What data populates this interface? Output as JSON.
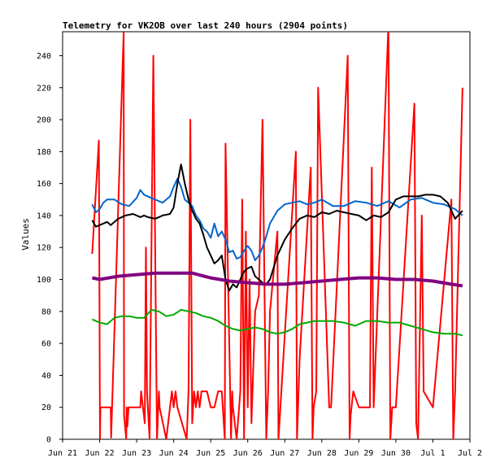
{
  "chart_data": {
    "type": "line",
    "title": "Telemetry for VK2OB over last 240 hours (2904 points)",
    "xlabel": "",
    "ylabel": "Values",
    "xlim": [
      "Jun 21",
      "Jul 2"
    ],
    "ylim": [
      0,
      255
    ],
    "x_ticks": [
      "Jun 21",
      "Jun 22",
      "Jun 23",
      "Jun 24",
      "Jun 25",
      "Jun 26",
      "Jun 27",
      "Jun 28",
      "Jun 29",
      "Jun 30",
      "Jul 1",
      "Jul 2"
    ],
    "y_ticks": [
      0,
      20,
      40,
      60,
      80,
      100,
      120,
      140,
      160,
      180,
      200,
      220,
      240
    ],
    "grid": false,
    "series": [
      {
        "color": "#ff0000",
        "x": [
          21.8,
          21.98,
          22.01,
          22.02,
          22.05,
          22.3,
          22.31,
          22.65,
          22.66,
          22.72,
          22.73,
          22.75,
          22.78,
          22.8,
          22.86,
          23.1,
          23.12,
          23.22,
          23.25,
          23.28,
          23.35,
          23.45,
          23.55,
          23.6,
          23.62,
          23.8,
          23.95,
          24.0,
          24.05,
          24.1,
          24.35,
          24.4,
          24.45,
          24.5,
          24.55,
          24.6,
          24.65,
          24.7,
          24.75,
          24.8,
          24.9,
          25.0,
          25.1,
          25.2,
          25.3,
          25.38,
          25.4,
          25.55,
          25.58,
          25.6,
          25.7,
          25.8,
          25.85,
          25.9,
          25.95,
          26.0,
          26.05,
          26.1,
          26.2,
          26.3,
          26.4,
          26.5,
          26.55,
          26.6,
          26.8,
          26.83,
          27.3,
          27.33,
          27.4,
          27.7,
          27.75,
          27.78,
          27.85,
          27.9,
          28.2,
          28.25,
          28.7,
          28.75,
          28.78,
          28.85,
          29.0,
          29.3,
          29.35,
          29.4,
          29.8,
          29.85,
          29.9,
          30.0,
          30.5,
          30.55,
          30.6,
          30.7,
          30.75,
          31.0,
          31.5,
          31.55,
          31.6,
          31.8
        ],
        "values": [
          116,
          187,
          0,
          20,
          20,
          20,
          1,
          255,
          15,
          0,
          20,
          8,
          20,
          20,
          20,
          20,
          30,
          10,
          120,
          30,
          0,
          240,
          0,
          30,
          20,
          0,
          30,
          20,
          30,
          20,
          0,
          30,
          200,
          10,
          30,
          20,
          30,
          20,
          30,
          30,
          30,
          20,
          20,
          30,
          30,
          0,
          185,
          0,
          30,
          20,
          0,
          30,
          150,
          0,
          130,
          20,
          100,
          10,
          80,
          90,
          200,
          0,
          30,
          80,
          130,
          0,
          180,
          0,
          50,
          170,
          0,
          20,
          30,
          220,
          20,
          20,
          240,
          0,
          15,
          30,
          20,
          20,
          170,
          20,
          260,
          0,
          20,
          20,
          210,
          10,
          0,
          140,
          30,
          20,
          150,
          0,
          30,
          220
        ]
      },
      {
        "color": "#0066cc",
        "x": [
          21.8,
          21.9,
          22.0,
          22.1,
          22.2,
          22.4,
          22.6,
          22.8,
          23.0,
          23.1,
          23.2,
          23.3,
          23.5,
          23.7,
          23.9,
          24.0,
          24.1,
          24.2,
          24.3,
          24.4,
          24.5,
          24.6,
          24.7,
          24.8,
          24.9,
          25.0,
          25.1,
          25.2,
          25.3,
          25.4,
          25.5,
          25.6,
          25.7,
          25.8,
          25.9,
          26.0,
          26.1,
          26.2,
          26.3,
          26.4,
          26.5,
          26.6,
          26.8,
          27.0,
          27.2,
          27.4,
          27.6,
          27.8,
          28.0,
          28.3,
          28.6,
          28.9,
          29.2,
          29.5,
          29.8,
          30.1,
          30.4,
          30.7,
          31.0,
          31.3,
          31.6,
          31.8
        ],
        "values": [
          147,
          142,
          144,
          148,
          150,
          150,
          147,
          146,
          151,
          156,
          153,
          152,
          150,
          148,
          152,
          158,
          163,
          158,
          150,
          148,
          146,
          140,
          137,
          132,
          130,
          126,
          135,
          127,
          130,
          125,
          117,
          118,
          113,
          114,
          118,
          121,
          118,
          112,
          115,
          120,
          127,
          135,
          143,
          147,
          148,
          149,
          147,
          148,
          150,
          146,
          146,
          149,
          148,
          146,
          149,
          145,
          150,
          151,
          148,
          147,
          144,
          140
        ]
      },
      {
        "color": "#000000",
        "x": [
          21.8,
          21.9,
          22.0,
          22.1,
          22.2,
          22.3,
          22.5,
          22.7,
          22.9,
          23.0,
          23.1,
          23.2,
          23.3,
          23.5,
          23.7,
          23.9,
          24.0,
          24.1,
          24.2,
          24.3,
          24.4,
          24.5,
          24.6,
          24.7,
          24.8,
          24.9,
          25.0,
          25.1,
          25.2,
          25.3,
          25.4,
          25.5,
          25.6,
          25.7,
          25.8,
          25.9,
          26.0,
          26.1,
          26.2,
          26.3,
          26.4,
          26.5,
          26.6,
          26.8,
          27.0,
          27.2,
          27.4,
          27.6,
          27.8,
          28.0,
          28.2,
          28.4,
          28.6,
          28.8,
          29.0,
          29.2,
          29.4,
          29.6,
          29.8,
          30.0,
          30.2,
          30.4,
          30.6,
          30.8,
          31.0,
          31.2,
          31.4,
          31.6,
          31.8
        ],
        "values": [
          137,
          133,
          134,
          135,
          136,
          134,
          138,
          140,
          141,
          140,
          139,
          140,
          139,
          138,
          140,
          141,
          145,
          160,
          172,
          160,
          150,
          143,
          138,
          135,
          128,
          120,
          115,
          110,
          112,
          115,
          100,
          93,
          97,
          95,
          100,
          105,
          107,
          108,
          102,
          100,
          98,
          97,
          100,
          115,
          125,
          132,
          138,
          140,
          139,
          142,
          141,
          143,
          142,
          141,
          140,
          137,
          140,
          139,
          142,
          150,
          152,
          152,
          152,
          153,
          153,
          152,
          148,
          138,
          143
        ]
      },
      {
        "color": "#800080",
        "x": [
          21.8,
          22.0,
          22.5,
          23.0,
          23.5,
          24.0,
          24.5,
          25.0,
          25.5,
          26.0,
          26.5,
          27.0,
          27.5,
          28.0,
          28.5,
          29.0,
          29.5,
          30.0,
          30.5,
          31.0,
          31.5,
          31.8
        ],
        "values": [
          101,
          100,
          102,
          103,
          104,
          104,
          104,
          101,
          99,
          98,
          97,
          97,
          98,
          99,
          100,
          101,
          101,
          100,
          100,
          99,
          97,
          96
        ]
      },
      {
        "color": "#00aa00",
        "x": [
          21.8,
          22.0,
          22.2,
          22.4,
          22.6,
          22.8,
          23.0,
          23.2,
          23.4,
          23.6,
          23.8,
          24.0,
          24.2,
          24.4,
          24.6,
          24.8,
          25.0,
          25.2,
          25.4,
          25.6,
          25.8,
          26.0,
          26.2,
          26.4,
          26.6,
          26.8,
          27.0,
          27.2,
          27.4,
          27.6,
          27.8,
          28.0,
          28.3,
          28.6,
          28.9,
          29.2,
          29.5,
          29.8,
          30.1,
          30.4,
          30.7,
          31.0,
          31.3,
          31.6,
          31.8
        ],
        "values": [
          75,
          73,
          72,
          76,
          77,
          77,
          76,
          76,
          81,
          80,
          77,
          78,
          81,
          80,
          79,
          77,
          76,
          74,
          71,
          69,
          68,
          69,
          70,
          69,
          67,
          66,
          67,
          69,
          72,
          73,
          74,
          74,
          74,
          73,
          71,
          74,
          74,
          73,
          73,
          71,
          69,
          67,
          66,
          66,
          65
        ]
      }
    ]
  }
}
